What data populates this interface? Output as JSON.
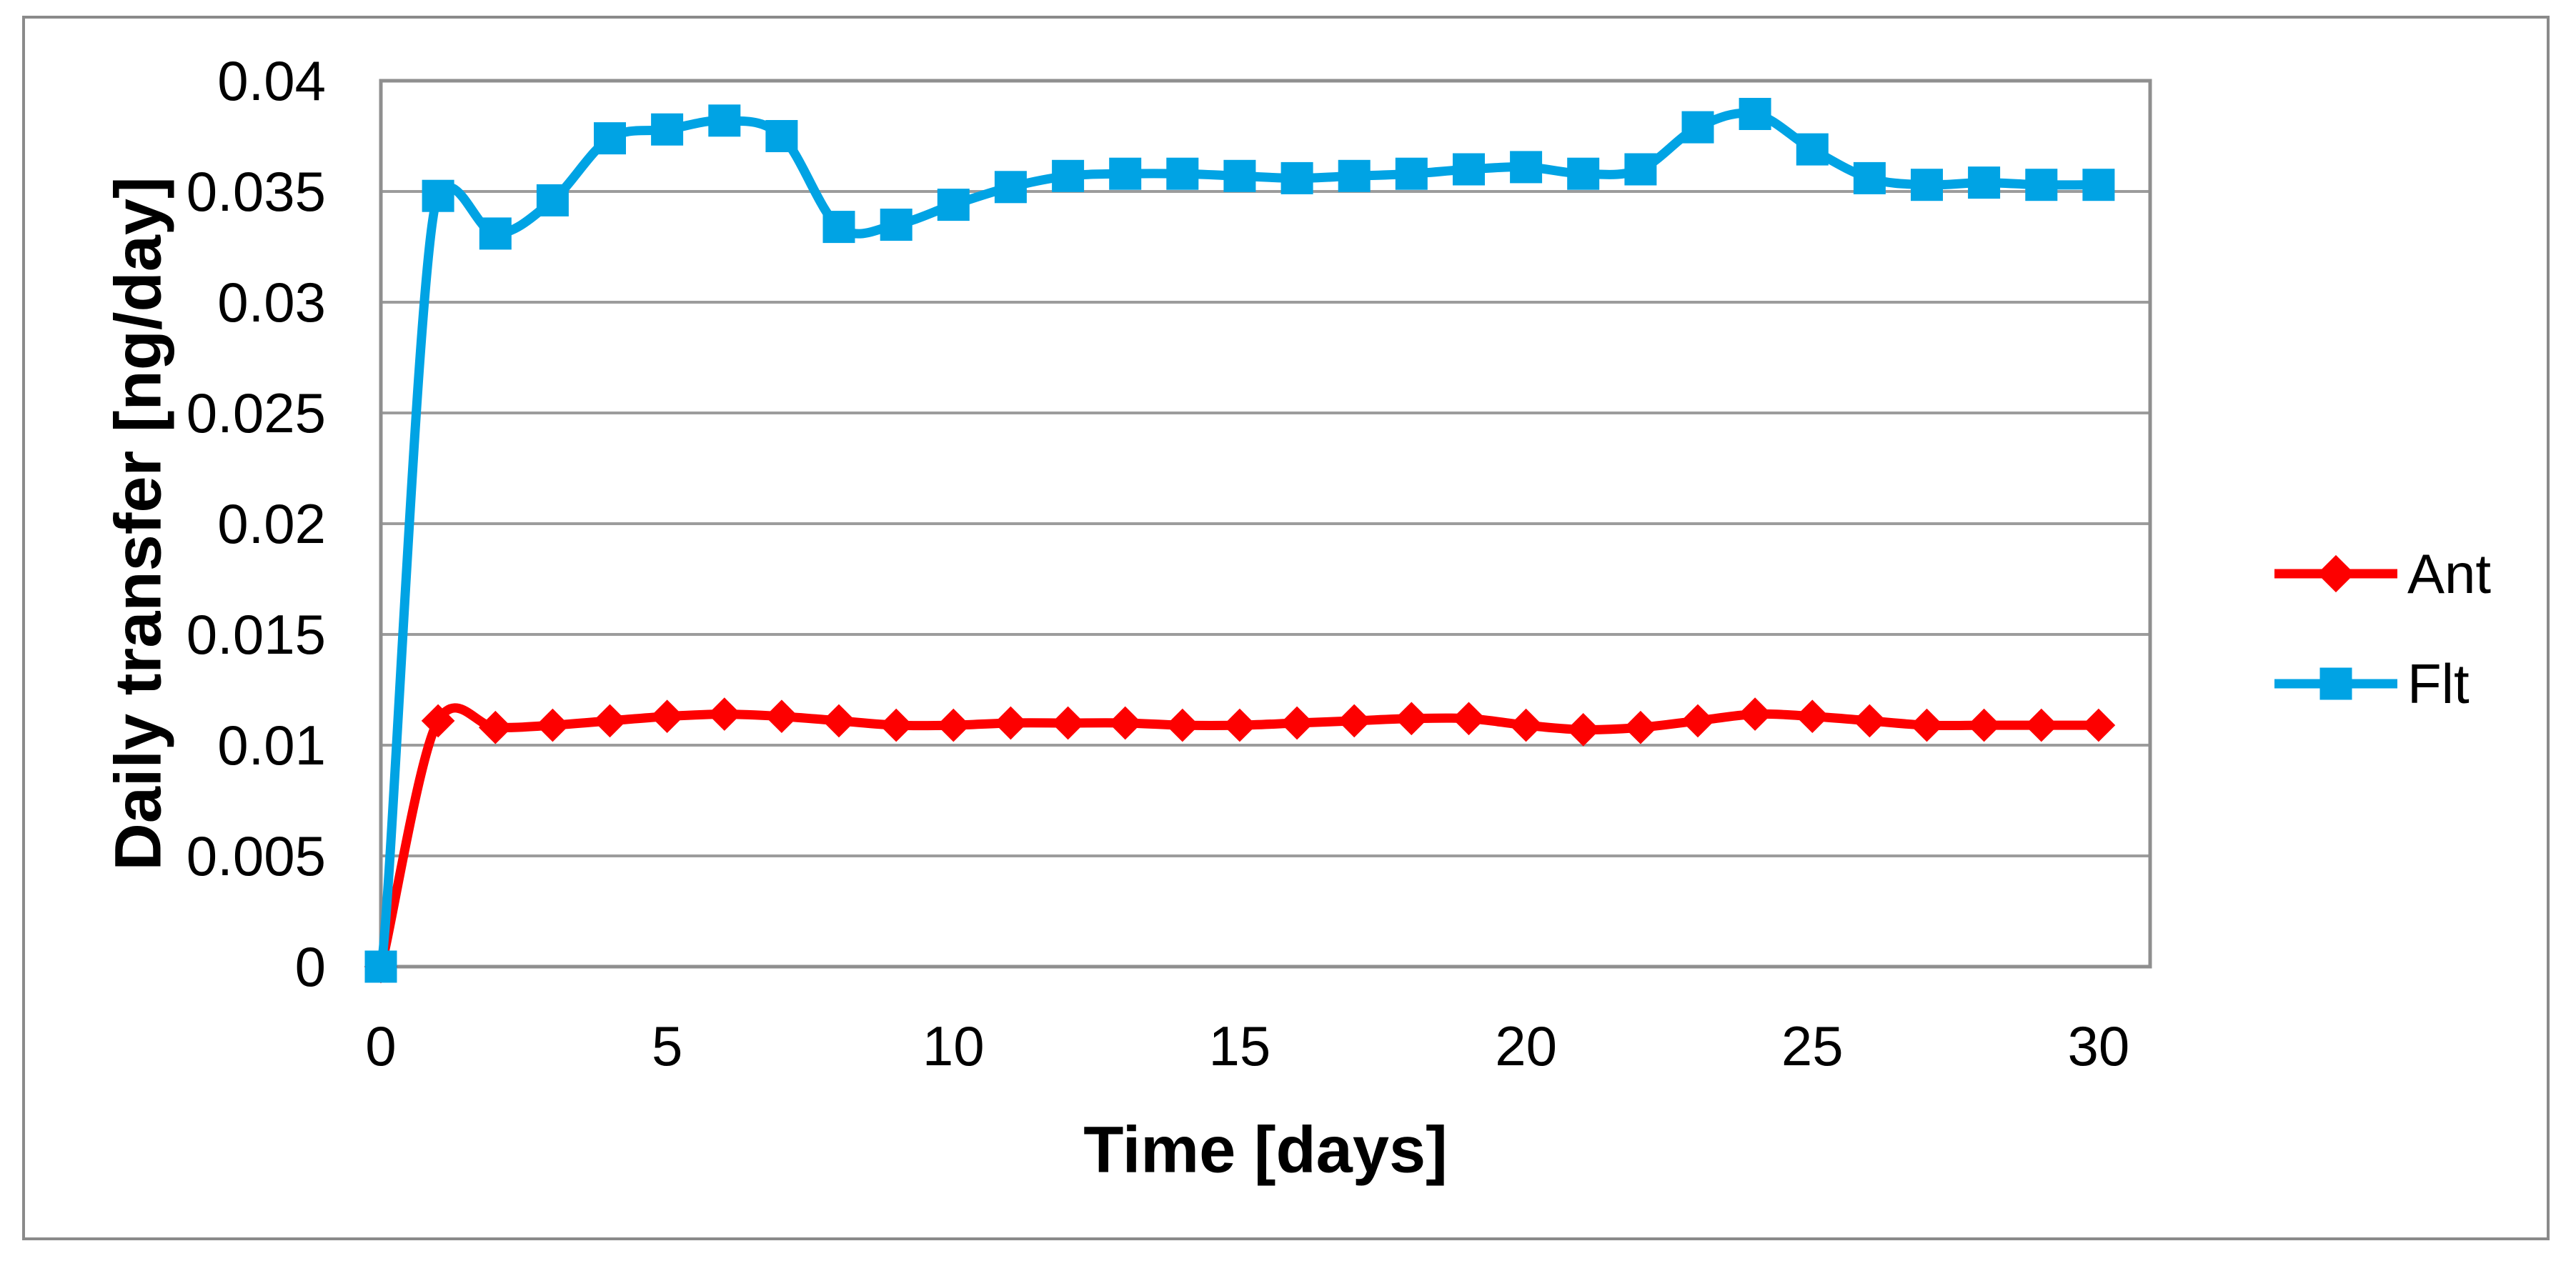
{
  "chart_data": {
    "type": "line",
    "title": "",
    "xlabel": "Time [days]",
    "ylabel": "Daily transfer [ng/day]",
    "x": [
      0,
      1,
      2,
      3,
      4,
      5,
      6,
      7,
      8,
      9,
      10,
      11,
      12,
      13,
      14,
      15,
      16,
      17,
      18,
      19,
      20,
      21,
      22,
      23,
      24,
      25,
      26,
      27,
      28,
      29,
      30
    ],
    "series": [
      {
        "name": "Ant",
        "color": "#FD0000",
        "marker": "diamond",
        "values": [
          0,
          0.0111,
          0.0108,
          0.0109,
          0.0111,
          0.0113,
          0.0114,
          0.0113,
          0.0111,
          0.0109,
          0.0109,
          0.011,
          0.011,
          0.011,
          0.0109,
          0.0109,
          0.011,
          0.0111,
          0.0112,
          0.0112,
          0.0109,
          0.0107,
          0.0108,
          0.0111,
          0.0114,
          0.0113,
          0.0111,
          0.0109,
          0.0109,
          0.0109,
          0.0109
        ]
      },
      {
        "name": "Flt",
        "color": "#00A3E4",
        "marker": "square",
        "values": [
          0,
          0.0348,
          0.0331,
          0.0346,
          0.0374,
          0.0378,
          0.0382,
          0.0375,
          0.0334,
          0.0335,
          0.0344,
          0.0352,
          0.0357,
          0.0358,
          0.0358,
          0.0357,
          0.0356,
          0.0357,
          0.0358,
          0.036,
          0.0361,
          0.0358,
          0.036,
          0.0379,
          0.0385,
          0.0369,
          0.0356,
          0.0353,
          0.0354,
          0.0353,
          0.0353
        ]
      }
    ],
    "xlim": [
      0,
      30.9
    ],
    "ylim": [
      0,
      0.04
    ],
    "x_ticks": [
      0,
      5,
      10,
      15,
      20,
      25,
      30
    ],
    "y_ticks": [
      {
        "value": 0,
        "label": "0"
      },
      {
        "value": 0.005,
        "label": "0.005"
      },
      {
        "value": 0.01,
        "label": "0.01"
      },
      {
        "value": 0.015,
        "label": "0.015"
      },
      {
        "value": 0.02,
        "label": "0.02"
      },
      {
        "value": 0.025,
        "label": "0.025"
      },
      {
        "value": 0.03,
        "label": "0.03"
      },
      {
        "value": 0.035,
        "label": "0.035"
      },
      {
        "value": 0.04,
        "label": "0.04"
      }
    ],
    "grid": "horizontal",
    "legend_position": "right",
    "colors": {
      "gridline": "#9C9C9C",
      "plot_border": "#8F8F8F",
      "outer_frame": "#8A8A8A",
      "text": "#000000",
      "background": "#FFFFFF"
    }
  }
}
